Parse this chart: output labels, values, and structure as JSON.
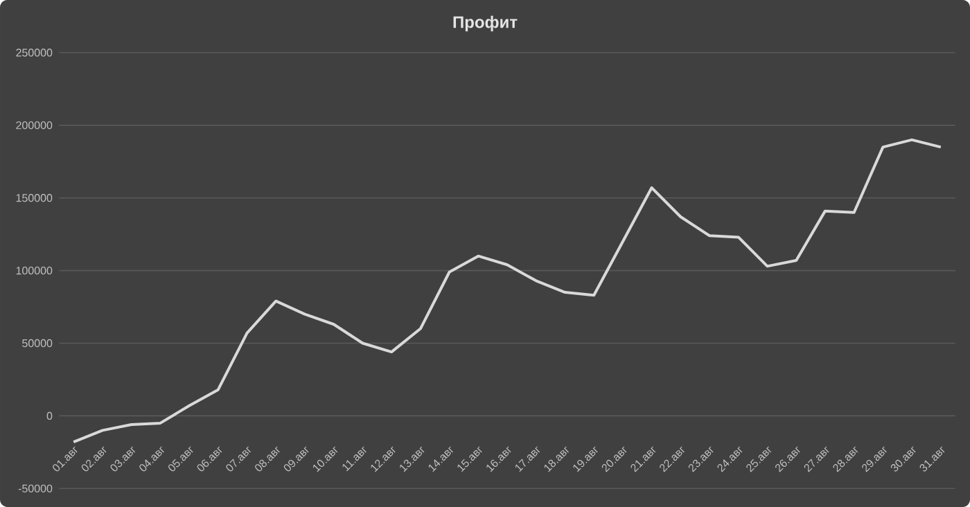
{
  "chart_data": {
    "type": "line",
    "title": "Профит",
    "categories": [
      "01.авг",
      "02.авг",
      "03.авг",
      "04.авг",
      "05.авг",
      "06.авг",
      "07.авг",
      "08.авг",
      "09.авг",
      "10.авг",
      "11.авг",
      "12.авг",
      "13.авг",
      "14.авг",
      "15.авг",
      "16.авг",
      "17.авг",
      "18.авг",
      "19.авг",
      "20.авг",
      "21.авг",
      "22.авг",
      "23.авг",
      "24.авг",
      "25.авг",
      "26.авг",
      "27.авг",
      "28.авг",
      "29.авг",
      "30.авг",
      "31.авг"
    ],
    "series": [
      {
        "color": "#d9d9d9",
        "values": [
          -18000,
          -10000,
          -6000,
          -5000,
          7000,
          18000,
          57000,
          79000,
          70000,
          63000,
          50000,
          44000,
          60000,
          99000,
          110000,
          104000,
          93000,
          85000,
          83000,
          120000,
          157000,
          137000,
          124000,
          123000,
          103000,
          107000,
          141000,
          140000,
          185000,
          190000,
          185000
        ]
      }
    ],
    "ylim": [
      -50000,
      250000
    ],
    "yticks": [
      -50000,
      0,
      50000,
      100000,
      150000,
      200000,
      250000
    ],
    "grid": "y",
    "marker": "none",
    "line_style": "solid"
  }
}
